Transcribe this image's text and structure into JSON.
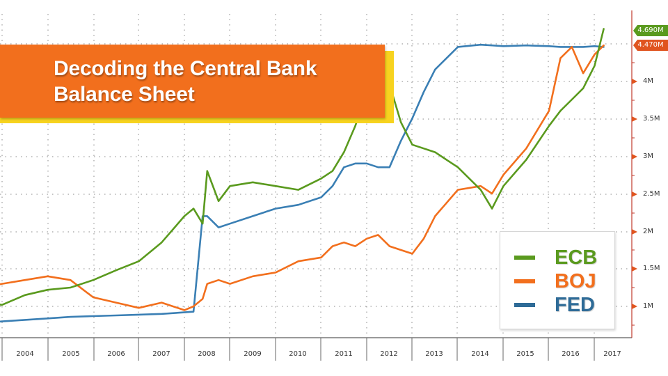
{
  "title": {
    "line1": "Decoding the Central Bank",
    "line2": "Balance Sheet"
  },
  "legend": {
    "items": [
      {
        "label": "ECB",
        "color": "#5a9a1e"
      },
      {
        "label": "BOJ",
        "color": "#f26f1d"
      },
      {
        "label": "FED",
        "color": "#2e6b97"
      }
    ]
  },
  "last_values": {
    "ecb": "4.690M",
    "boj": "4.470M"
  },
  "y_axis": {
    "ticks": [
      "1M",
      "1.5M",
      "2M",
      "2.5M",
      "3M",
      "3.5M",
      "4M"
    ]
  },
  "x_axis": {
    "ticks": [
      "2004",
      "2005",
      "2006",
      "2007",
      "2008",
      "2009",
      "2010",
      "2011",
      "2012",
      "2013",
      "2014",
      "2015",
      "2016",
      "2017"
    ]
  },
  "colors": {
    "ecb": "#5a9a1e",
    "boj": "#f26f1d",
    "fed": "#3a7fb4",
    "banner": "#f26f1d",
    "banner_shadow": "#f7d31f",
    "axis": "#c0392b"
  },
  "chart_data": {
    "type": "line",
    "title": "Decoding the Central Bank Balance Sheet",
    "xlabel": "",
    "ylabel": "",
    "ylim": [
      0.7,
      4.8
    ],
    "xlim": [
      2003.6,
      2017.4
    ],
    "grid": true,
    "legend_position": "lower right",
    "x": [
      2003.6,
      2004.0,
      2004.5,
      2005.0,
      2005.5,
      2006.0,
      2006.5,
      2007.0,
      2007.5,
      2008.0,
      2008.2,
      2008.4,
      2008.5,
      2008.75,
      2009.0,
      2009.5,
      2010.0,
      2010.5,
      2011.0,
      2011.25,
      2011.5,
      2011.75,
      2012.0,
      2012.25,
      2012.5,
      2012.75,
      2013.0,
      2013.25,
      2013.5,
      2014.0,
      2014.5,
      2014.75,
      2015.0,
      2015.5,
      2016.0,
      2016.25,
      2016.5,
      2016.75,
      2017.0,
      2017.2
    ],
    "series": [
      {
        "name": "ECB",
        "values": [
          1.05,
          1.02,
          1.15,
          1.22,
          1.25,
          1.35,
          1.48,
          1.6,
          1.85,
          2.2,
          2.3,
          2.1,
          2.8,
          2.4,
          2.6,
          2.65,
          2.6,
          2.55,
          2.7,
          2.8,
          3.05,
          3.4,
          3.85,
          4.0,
          3.95,
          3.45,
          3.15,
          3.1,
          3.05,
          2.85,
          2.55,
          2.3,
          2.6,
          2.95,
          3.4,
          3.6,
          3.75,
          3.9,
          4.2,
          4.69
        ]
      },
      {
        "name": "BOJ",
        "values": [
          1.25,
          1.3,
          1.35,
          1.4,
          1.35,
          1.12,
          1.05,
          0.98,
          1.05,
          0.95,
          1.0,
          1.1,
          1.3,
          1.35,
          1.3,
          1.4,
          1.45,
          1.6,
          1.65,
          1.8,
          1.85,
          1.8,
          1.9,
          1.95,
          1.8,
          1.75,
          1.7,
          1.9,
          2.2,
          2.55,
          2.6,
          2.5,
          2.75,
          3.1,
          3.6,
          4.3,
          4.45,
          4.1,
          4.35,
          4.47
        ]
      },
      {
        "name": "FED",
        "values": [
          0.78,
          0.8,
          0.82,
          0.84,
          0.86,
          0.87,
          0.88,
          0.89,
          0.9,
          0.92,
          0.93,
          2.2,
          2.2,
          2.05,
          2.1,
          2.2,
          2.3,
          2.35,
          2.45,
          2.6,
          2.85,
          2.9,
          2.9,
          2.85,
          2.85,
          3.2,
          3.5,
          3.85,
          4.15,
          4.45,
          4.48,
          4.47,
          4.46,
          4.47,
          4.46,
          4.45,
          4.45,
          4.45,
          4.46,
          4.45
        ]
      }
    ],
    "annotations": [
      "4.690M (ECB last)",
      "4.470M (BOJ last)"
    ]
  }
}
